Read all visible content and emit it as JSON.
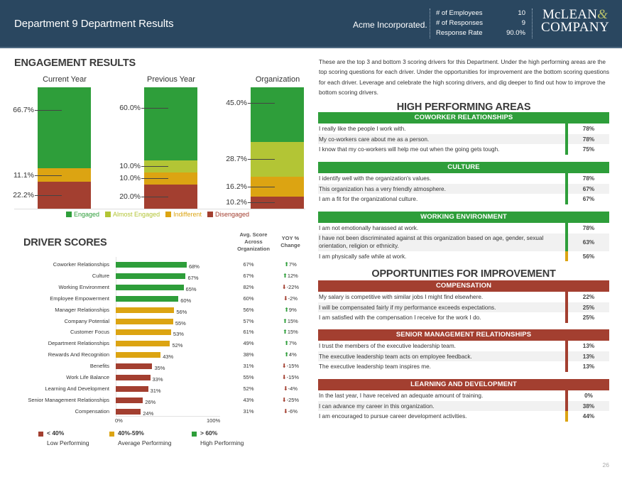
{
  "colors": {
    "header_bg": "#2a4760",
    "engaged": "#2e9e3a",
    "almost_engaged": "#b3c535",
    "indifferent": "#dca412",
    "disengaged": "#a33f30",
    "high": "#2e9e3a",
    "average": "#dca412",
    "low": "#a33f30"
  },
  "header": {
    "title": "Department 9 Department Results",
    "company": "Acme Incorporated.",
    "stats": [
      {
        "label": "# of Employees",
        "value": "10"
      },
      {
        "label": "# of Responses",
        "value": "9"
      },
      {
        "label": "Response Rate",
        "value": "90.0%"
      }
    ],
    "logo_line1": "McLEAN",
    "logo_amp": "&",
    "logo_line2": "COMPANY"
  },
  "engagement": {
    "title": "ENGAGEMENT RESULTS",
    "legend": [
      {
        "key": "engaged",
        "label": "Engaged"
      },
      {
        "key": "almost_engaged",
        "label": "Almost Engaged"
      },
      {
        "key": "indifferent",
        "label": "Indifferent"
      },
      {
        "key": "disengaged",
        "label": "Disengaged"
      }
    ]
  },
  "drivers": {
    "title": "DRIVER SCORES",
    "org_header": "Avg. Score Across Organization",
    "yoy_header": "YOY % Change",
    "axis_min_label": "0%",
    "axis_max_label": "100%",
    "legend": [
      {
        "key": "low",
        "range": "< 40%",
        "label": "Low Performing"
      },
      {
        "key": "average",
        "range": "40%-59%",
        "label": "Average Performing"
      },
      {
        "key": "high",
        "range": "> 60%",
        "label": "High Performing"
      }
    ]
  },
  "chart_data": [
    {
      "type": "bar",
      "stacked": true,
      "title": "ENGAGEMENT RESULTS",
      "categories": [
        "Current Year",
        "Previous Year",
        "Organization"
      ],
      "series": [
        {
          "name": "Disengaged",
          "values": [
            22.2,
            20.0,
            10.2
          ]
        },
        {
          "name": "Indifferent",
          "values": [
            11.1,
            10.0,
            16.2
          ]
        },
        {
          "name": "Almost Engaged",
          "values": [
            0,
            10.0,
            28.7
          ]
        },
        {
          "name": "Engaged",
          "values": [
            66.7,
            60.0,
            45.0
          ]
        }
      ],
      "value_labels": [
        [
          "66.7%",
          "11.1%",
          "22.2%"
        ],
        [
          "60.0%",
          "10.0%",
          "10.0%",
          "20.0%"
        ],
        [
          "45.0%",
          "28.7%",
          "16.2%",
          "10.2%"
        ]
      ],
      "ylim": [
        0,
        100
      ],
      "legend_position": "bottom"
    },
    {
      "type": "bar",
      "orientation": "horizontal",
      "title": "DRIVER SCORES",
      "xlim": [
        0,
        100
      ],
      "xticks": [
        "0%",
        "100%"
      ],
      "categories": [
        "Coworker Relationships",
        "Culture",
        "Working Environment",
        "Employee Empowerment",
        "Manager Relationships",
        "Company Potential",
        "Customer Focus",
        "Department Relationships",
        "Rewards And Recognition",
        "Benefits",
        "Work Life Balance",
        "Learning And Development",
        "Senior Management Relationships",
        "Compensation"
      ],
      "values": [
        68,
        67,
        65,
        60,
        56,
        55,
        53,
        52,
        43,
        35,
        33,
        31,
        26,
        24
      ],
      "org_avg": [
        67,
        67,
        82,
        60,
        56,
        57,
        61,
        49,
        38,
        31,
        55,
        52,
        43,
        31
      ],
      "yoy_change": [
        7,
        12,
        -22,
        -2,
        9,
        15,
        15,
        7,
        4,
        -15,
        -15,
        -4,
        -25,
        -6
      ]
    }
  ],
  "right": {
    "intro": "These are the top 3 and bottom 3 scoring drivers for this Department. Under the high performing areas are the top scoring questions for each driver. Under the opportunities for improvement are the bottom scoring questions for each driver. Leverage and celebrate the high scoring drivers, and dig deeper to find out how to improve the bottom scoring drivers.",
    "high_title": "HIGH PERFORMING AREAS",
    "low_title": "OPPORTUNITIES FOR IMPROVEMENT",
    "high_blocks": [
      {
        "name": "COWORKER RELATIONSHIPS",
        "rows": [
          {
            "q": "I really like the people I work with.",
            "v": "78%",
            "level": "high"
          },
          {
            "q": "My co-workers care about me as a person.",
            "v": "78%",
            "level": "high"
          },
          {
            "q": "I know that my co-workers will help me out when the going gets tough.",
            "v": "75%",
            "level": "high"
          }
        ]
      },
      {
        "name": "CULTURE",
        "rows": [
          {
            "q": "I identify well with the organization's values.",
            "v": "78%",
            "level": "high"
          },
          {
            "q": "This organization has a very friendly atmosphere.",
            "v": "67%",
            "level": "high"
          },
          {
            "q": "I am a fit for the organizational culture.",
            "v": "67%",
            "level": "high"
          }
        ]
      },
      {
        "name": "WORKING ENVIRONMENT",
        "rows": [
          {
            "q": "I am not emotionally harassed at work.",
            "v": "78%",
            "level": "high"
          },
          {
            "q": "I have not been discriminated against at this organization based on age, gender, sexual orientation, religion or ethnicity.",
            "v": "63%",
            "level": "high"
          },
          {
            "q": "I am physically safe while at work.",
            "v": "56%",
            "level": "average"
          }
        ]
      }
    ],
    "low_blocks": [
      {
        "name": "COMPENSATION",
        "rows": [
          {
            "q": "My salary is competitive with similar jobs I might find elsewhere.",
            "v": "22%",
            "level": "low"
          },
          {
            "q": "I will be compensated fairly if my performance exceeds expectations.",
            "v": "25%",
            "level": "low"
          },
          {
            "q": "I am satisfied with the compensation I receive for the work I do.",
            "v": "25%",
            "level": "low"
          }
        ]
      },
      {
        "name": "SENIOR MANAGEMENT RELATIONSHIPS",
        "rows": [
          {
            "q": "I trust the members of the executive leadership team.",
            "v": "13%",
            "level": "low"
          },
          {
            "q": "The executive leadership team acts on employee feedback.",
            "v": "13%",
            "level": "low"
          },
          {
            "q": "The executive leadership team inspires me.",
            "v": "13%",
            "level": "low"
          }
        ]
      },
      {
        "name": "LEARNING AND DEVELOPMENT",
        "rows": [
          {
            "q": "In the last year, I have received an adequate amount of training.",
            "v": "0%",
            "level": "low"
          },
          {
            "q": "I can advance my career in this organization.",
            "v": "38%",
            "level": "low"
          },
          {
            "q": "I am encouraged to pursue career development activities.",
            "v": "44%",
            "level": "average"
          }
        ]
      }
    ]
  },
  "page_number": "26"
}
